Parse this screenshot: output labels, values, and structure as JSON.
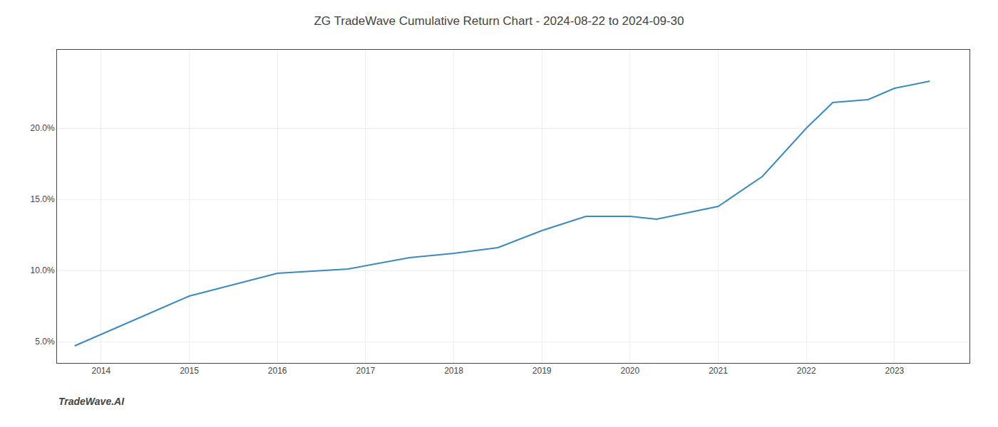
{
  "chart_data": {
    "type": "line",
    "title": "ZG TradeWave Cumulative Return Chart - 2024-08-22 to 2024-09-30",
    "annotations": [
      {
        "text": "TradeWave.AI"
      }
    ],
    "x": [
      2013.7,
      2015.0,
      2016.0,
      2016.8,
      2017.5,
      2018.0,
      2018.5,
      2019.0,
      2019.5,
      2020.0,
      2020.3,
      2021.0,
      2021.5,
      2022.0,
      2022.3,
      2022.7,
      2023.0,
      2023.4
    ],
    "values": [
      4.7,
      8.2,
      9.8,
      10.1,
      10.9,
      11.2,
      11.6,
      12.8,
      13.8,
      13.8,
      13.6,
      14.5,
      16.6,
      20.0,
      21.8,
      22.0,
      22.8,
      23.3
    ],
    "color": "#3a8abf",
    "xlim": [
      2013.5,
      2023.85
    ],
    "ylim": [
      3.5,
      25.5
    ],
    "xticks": [
      2014,
      2015,
      2016,
      2017,
      2018,
      2019,
      2020,
      2021,
      2022,
      2023
    ],
    "yticks": [
      {
        "value": 5.0,
        "label": "5.0%"
      },
      {
        "value": 10.0,
        "label": "10.0%"
      },
      {
        "value": 15.0,
        "label": "15.0%"
      },
      {
        "value": 20.0,
        "label": "20.0%"
      }
    ],
    "grid": true
  }
}
